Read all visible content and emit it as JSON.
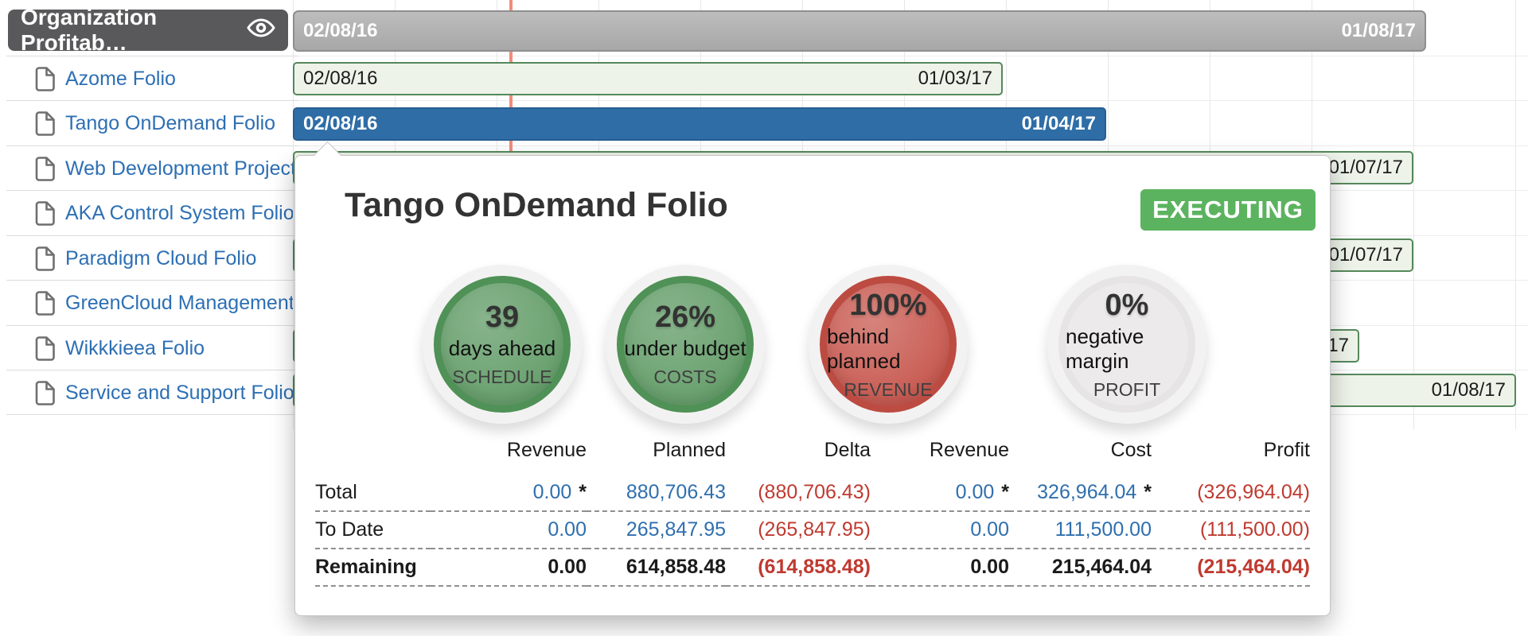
{
  "sidebar": {
    "header": {
      "label": "Organization Profitab…"
    },
    "items": [
      {
        "label": "Azome Folio"
      },
      {
        "label": "Tango OnDemand Folio"
      },
      {
        "label": "Web Development Projects"
      },
      {
        "label": "AKA Control System Folio"
      },
      {
        "label": "Paradigm Cloud Folio"
      },
      {
        "label": "GreenCloud Management …"
      },
      {
        "label": "Wikkkieea Folio"
      },
      {
        "label": "Service and Support Folio"
      }
    ]
  },
  "gantt": {
    "timeline": {
      "start": "02/08/16",
      "end": "01/08/17"
    },
    "bars": {
      "azome": {
        "start": "02/08/16",
        "end": "01/03/17"
      },
      "tango": {
        "start": "02/08/16",
        "end": "01/04/17"
      },
      "webdev": {
        "end": "01/07/17"
      },
      "paradigm": {
        "end": "01/07/17"
      },
      "wikkkieea": {
        "end": "01/07/17"
      },
      "service": {
        "end": "01/08/17"
      }
    }
  },
  "popup": {
    "title": "Tango OnDemand Folio",
    "status": "EXECUTING",
    "gauges": [
      {
        "value": "39",
        "caption": "days ahead",
        "metric": "SCHEDULE",
        "color": "green"
      },
      {
        "value": "26%",
        "caption": "under budget",
        "metric": "COSTS",
        "color": "green"
      },
      {
        "value": "100%",
        "caption": "behind planned",
        "metric": "REVENUE",
        "color": "red"
      },
      {
        "value": "0%",
        "caption": "negative margin",
        "metric": "PROFIT",
        "color": "gray"
      }
    ],
    "table": {
      "headers": [
        "Revenue",
        "Planned",
        "Delta",
        "Revenue",
        "Cost",
        "Profit"
      ],
      "rows": [
        {
          "label": "Total",
          "values": [
            "0.00",
            "880,706.43",
            "(880,706.43)",
            "0.00",
            "326,964.04",
            "(326,964.04)"
          ],
          "suffixes": [
            "*",
            "",
            "",
            "*",
            "*",
            ""
          ]
        },
        {
          "label": "To Date",
          "values": [
            "0.00",
            "265,847.95",
            "(265,847.95)",
            "0.00",
            "111,500.00",
            "(111,500.00)"
          ],
          "suffixes": [
            "",
            "",
            "",
            "",
            "",
            ""
          ]
        },
        {
          "label": "Remaining",
          "values": [
            "0.00",
            "614,858.48",
            "(614,858.48)",
            "0.00",
            "215,464.04",
            "(215,464.04)"
          ],
          "suffixes": [
            "",
            "",
            "",
            "",
            "",
            ""
          ]
        }
      ]
    }
  },
  "colors": {
    "selected_bar_blue": "#2e6da6",
    "bar_green_border": "#55885a",
    "status_green": "#5cb35f",
    "gauge_red": "#bc4b42",
    "today_line": "#f28b7c",
    "number_blue": "#2f6fae",
    "number_red": "#bf3a30"
  }
}
